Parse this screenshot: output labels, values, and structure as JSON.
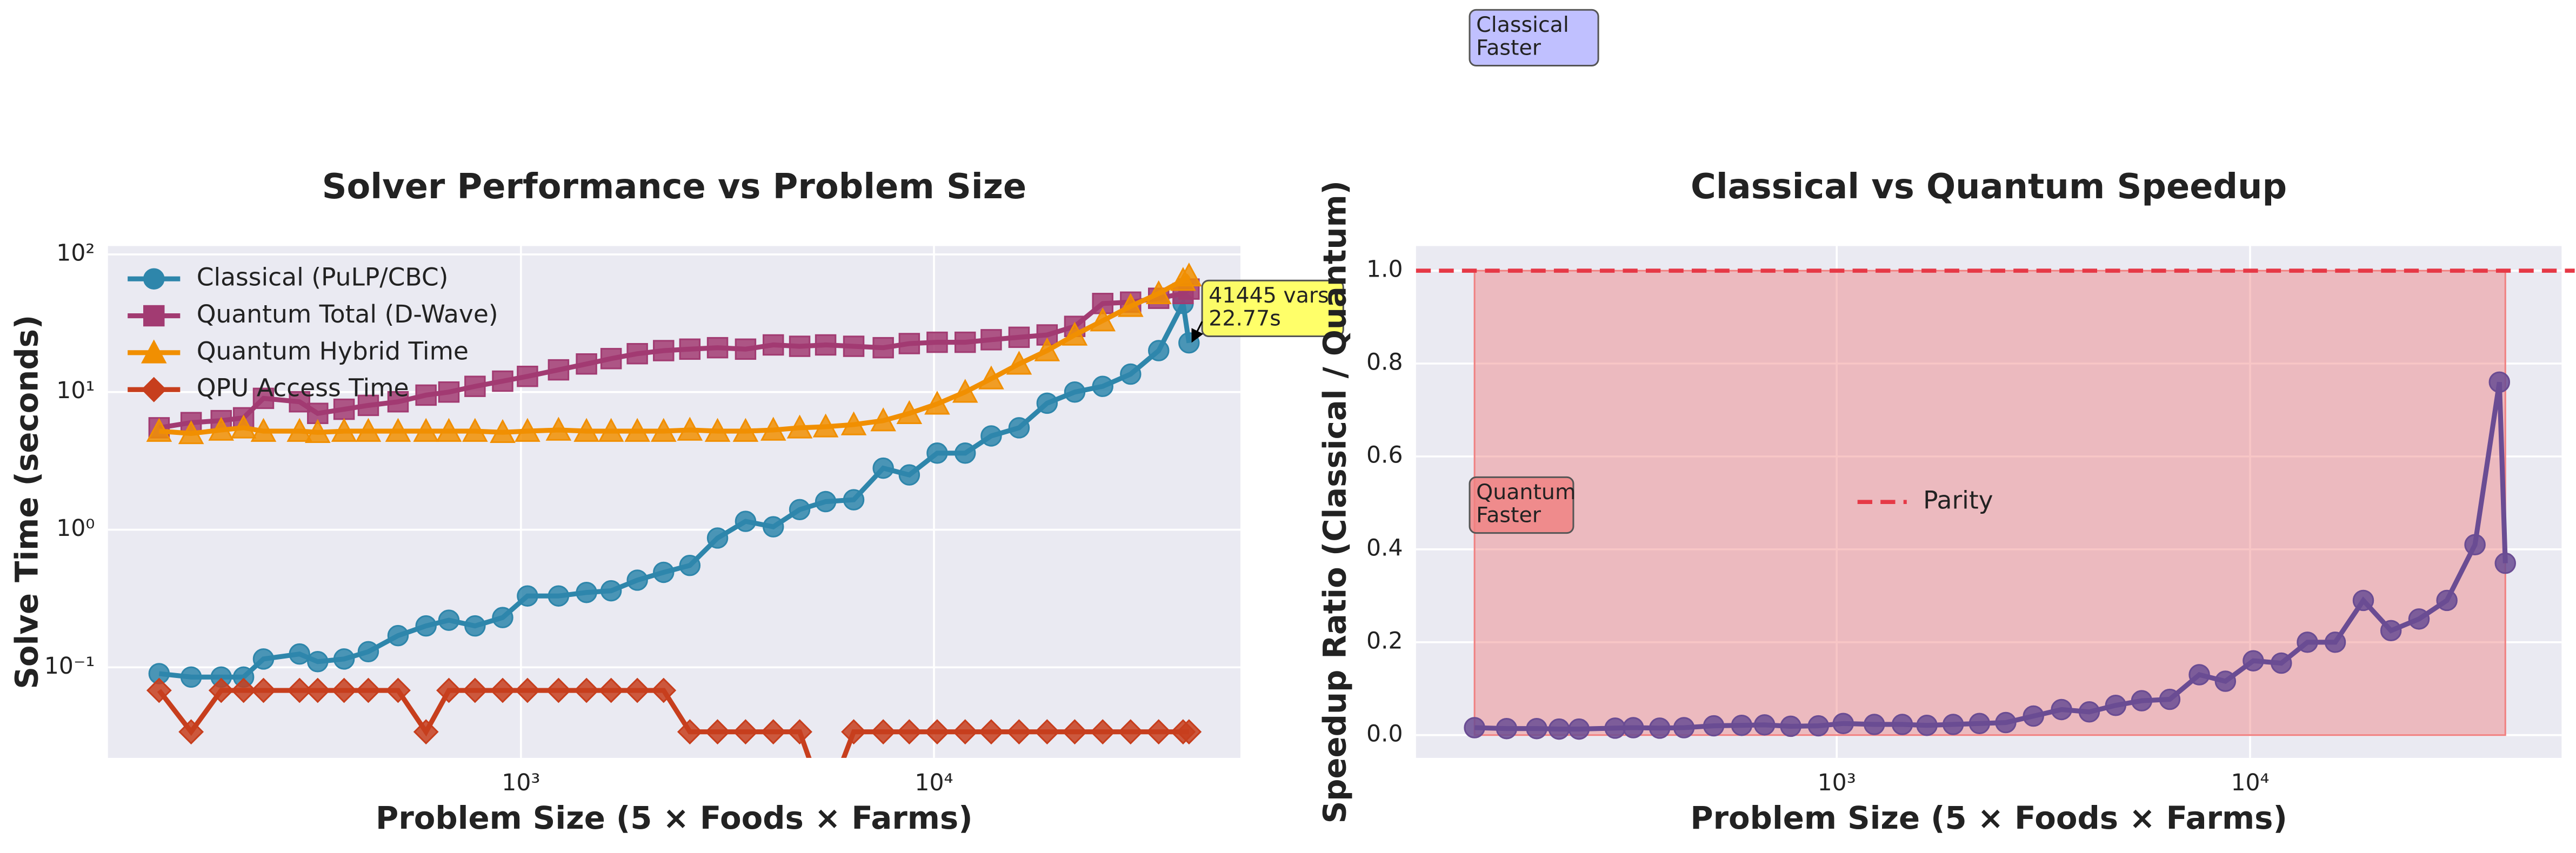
{
  "chart_data": [
    {
      "type": "line",
      "title": "Solver Performance vs Problem Size",
      "xlabel": "Problem Size (5 × Foods × Farms)",
      "ylabel": "Solve Time (seconds)",
      "xscale": "log",
      "yscale": "log",
      "xlim": [
        100,
        55200
      ],
      "ylim": [
        0.022,
        115
      ],
      "xticks": [
        {
          "value": 1000,
          "label": "10³"
        },
        {
          "value": 10000,
          "label": "10⁴"
        }
      ],
      "yticks": [
        {
          "value": 0.1,
          "label": "10⁻¹"
        },
        {
          "value": 1,
          "label": "10⁰"
        },
        {
          "value": 10,
          "label": "10¹"
        },
        {
          "value": 100,
          "label": "10²"
        }
      ],
      "grid": true,
      "legend": "upper left",
      "x": [
        133,
        159,
        188,
        213,
        238,
        291,
        322,
        373,
        427,
        504,
        589,
        669,
        774,
        903,
        1037,
        1233,
        1441,
        1653,
        1913,
        2215,
        2564,
        2992,
        3498,
        4083,
        4730,
        5467,
        6393,
        7537,
        8715,
        10180,
        11900,
        13760,
        16070,
        18790,
        21920,
        25620,
        29930,
        35000,
        40100,
        41445
      ],
      "series": [
        {
          "name": "Classical (PuLP/CBC)",
          "color": "#2e86ab",
          "marker": "o",
          "values": [
            0.09,
            0.085,
            0.085,
            0.085,
            0.115,
            0.125,
            0.11,
            0.115,
            0.13,
            0.17,
            0.2,
            0.22,
            0.2,
            0.23,
            0.33,
            0.33,
            0.35,
            0.36,
            0.43,
            0.49,
            0.55,
            0.87,
            1.15,
            1.05,
            1.4,
            1.6,
            1.65,
            2.8,
            2.5,
            3.6,
            3.6,
            4.8,
            5.5,
            8.3,
            10,
            11,
            13.5,
            20,
            44,
            22.77
          ]
        },
        {
          "name": "Quantum Total (D-Wave)",
          "color": "#a23b72",
          "marker": "s",
          "values": [
            5.5,
            6,
            6.2,
            6.5,
            9,
            8.5,
            7,
            7.5,
            8,
            8.5,
            9.5,
            10,
            11,
            12,
            13,
            14.5,
            16,
            17.5,
            19,
            20,
            20.5,
            21,
            20.5,
            22,
            21.5,
            22,
            21.5,
            21,
            22.5,
            23,
            23,
            24,
            25,
            26,
            30,
            44,
            45,
            48,
            52,
            56
          ]
        },
        {
          "name": "Quantum Hybrid Time",
          "color": "#f18f01",
          "marker": "^",
          "values": [
            5.2,
            5,
            5.3,
            5.5,
            5.2,
            5.2,
            5.1,
            5.2,
            5.2,
            5.2,
            5.2,
            5.2,
            5.2,
            5.1,
            5.2,
            5.3,
            5.2,
            5.2,
            5.2,
            5.2,
            5.3,
            5.2,
            5.2,
            5.3,
            5.5,
            5.6,
            5.8,
            6.2,
            7,
            8.2,
            10,
            12.5,
            16,
            20,
            26,
            33,
            42,
            52,
            65,
            70
          ]
        },
        {
          "name": "QPU Access Time",
          "color": "#c73e1d",
          "marker": "D",
          "values": [
            0.068,
            0.034,
            0.068,
            0.068,
            0.068,
            0.068,
            0.068,
            0.068,
            0.068,
            0.068,
            0.034,
            0.068,
            0.068,
            0.068,
            0.068,
            0.068,
            0.068,
            0.068,
            0.068,
            0.068,
            0.034,
            0.034,
            0.034,
            0.034,
            0.034,
            0.01,
            0.034,
            0.034,
            0.034,
            0.034,
            0.034,
            0.034,
            0.034,
            0.034,
            0.034,
            0.034,
            0.034,
            0.034,
            0.034,
            0.034
          ]
        }
      ],
      "annotation": {
        "text": [
          "41445 vars",
          "22.77s"
        ],
        "color": "#ffff44"
      }
    },
    {
      "type": "line",
      "title": "Classical vs Quantum Speedup",
      "xlabel": "Problem Size (5 × Foods × Farms)",
      "ylabel": "Speedup Ratio (Classical / Quantum)",
      "xscale": "log",
      "yscale": "linear",
      "xlim": [
        96,
        56700
      ],
      "ylim": [
        -0.049,
        1.053
      ],
      "xticks": [
        {
          "value": 1000,
          "label": "10³"
        },
        {
          "value": 10000,
          "label": "10⁴"
        }
      ],
      "yticks": [
        {
          "value": 0,
          "label": "0.0"
        },
        0.2,
        0.4,
        0.6,
        0.8,
        {
          "value": 1,
          "label": "1.0"
        }
      ],
      "grid": true,
      "legend": "center",
      "x": [
        133,
        159,
        188,
        213,
        238,
        291,
        322,
        373,
        427,
        504,
        589,
        669,
        774,
        903,
        1037,
        1233,
        1441,
        1653,
        1913,
        2215,
        2564,
        2992,
        3498,
        4083,
        4730,
        5467,
        6393,
        7537,
        8715,
        10180,
        11900,
        13760,
        16070,
        18790,
        21920,
        25620,
        29930,
        35000,
        40100,
        41445
      ],
      "series": [
        {
          "color": "#6a4c93",
          "marker": "o",
          "values": [
            0.016,
            0.014,
            0.014,
            0.013,
            0.013,
            0.015,
            0.016,
            0.015,
            0.016,
            0.02,
            0.021,
            0.022,
            0.019,
            0.02,
            0.025,
            0.023,
            0.023,
            0.021,
            0.023,
            0.025,
            0.027,
            0.041,
            0.055,
            0.05,
            0.064,
            0.074,
            0.077,
            0.13,
            0.116,
            0.16,
            0.155,
            0.2,
            0.2,
            0.29,
            0.225,
            0.25,
            0.29,
            0.41,
            0.76,
            0.37
          ]
        }
      ],
      "reference_line": {
        "name": "Parity",
        "value": 1,
        "color": "#e63946"
      },
      "region_color": "#f08080",
      "annotations": [
        {
          "text": [
            "Quantum",
            "Faster"
          ],
          "color": "#f08080"
        },
        {
          "text": [
            "Classical",
            "Faster"
          ],
          "color": "#b0b0ff"
        }
      ]
    }
  ]
}
